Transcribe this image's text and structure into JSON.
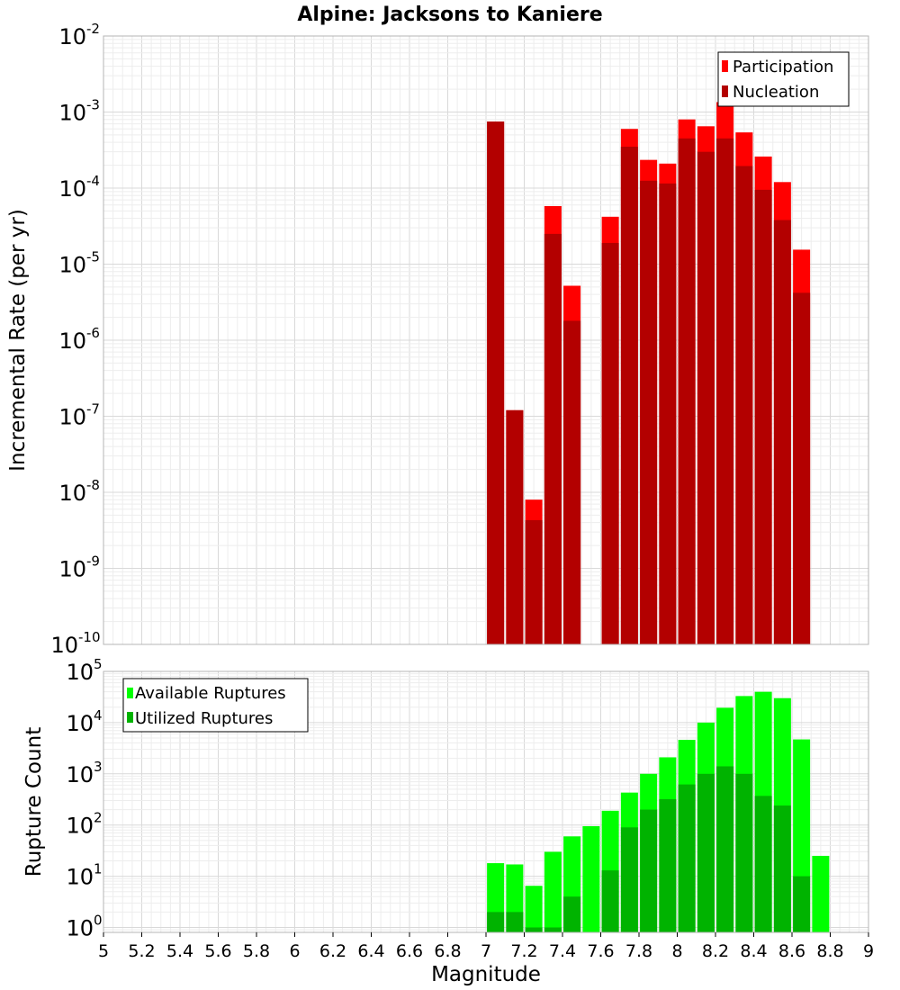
{
  "chart_data": [
    {
      "type": "bar",
      "title": "Alpine: Jacksons to Kaniere",
      "xlabel": "Magnitude",
      "ylabel": "Incremental Rate (per yr)",
      "yscale": "log",
      "ylim": [
        1e-10,
        0.01
      ],
      "xlim": [
        5,
        9
      ],
      "grid": true,
      "legend_position": "top-right",
      "y_tick_labels": [
        {
          "base": "10",
          "exp": "-10",
          "value": 1e-10
        },
        {
          "base": "10",
          "exp": "-9",
          "value": 1e-09
        },
        {
          "base": "10",
          "exp": "-8",
          "value": 1e-08
        },
        {
          "base": "10",
          "exp": "-7",
          "value": 1e-07
        },
        {
          "base": "10",
          "exp": "-6",
          "value": 1e-06
        },
        {
          "base": "10",
          "exp": "-5",
          "value": 1e-05
        },
        {
          "base": "10",
          "exp": "-4",
          "value": 0.0001
        },
        {
          "base": "10",
          "exp": "-3",
          "value": 0.001
        },
        {
          "base": "10",
          "exp": "-2",
          "value": 0.01
        }
      ],
      "series": [
        {
          "name": "Participation",
          "color": "#ff0000",
          "points": [
            {
              "x": 7.05,
              "y": 0.00075
            },
            {
              "x": 7.15,
              "y": 1.2e-07
            },
            {
              "x": 7.25,
              "y": 8e-09
            },
            {
              "x": 7.35,
              "y": 5.8e-05
            },
            {
              "x": 7.45,
              "y": 5.2e-06
            },
            {
              "x": 7.65,
              "y": 4.2e-05
            },
            {
              "x": 7.75,
              "y": 0.0006
            },
            {
              "x": 7.85,
              "y": 0.000235
            },
            {
              "x": 7.95,
              "y": 0.00021
            },
            {
              "x": 8.05,
              "y": 0.0008
            },
            {
              "x": 8.15,
              "y": 0.00065
            },
            {
              "x": 8.25,
              "y": 0.00135
            },
            {
              "x": 8.35,
              "y": 0.00054
            },
            {
              "x": 8.45,
              "y": 0.00026
            },
            {
              "x": 8.55,
              "y": 0.00012
            },
            {
              "x": 8.65,
              "y": 1.55e-05
            }
          ]
        },
        {
          "name": "Nucleation",
          "color": "#b30000",
          "points": [
            {
              "x": 7.05,
              "y": 0.00075
            },
            {
              "x": 7.15,
              "y": 1.2e-07
            },
            {
              "x": 7.25,
              "y": 4.3e-09
            },
            {
              "x": 7.35,
              "y": 2.5e-05
            },
            {
              "x": 7.45,
              "y": 1.8e-06
            },
            {
              "x": 7.65,
              "y": 1.9e-05
            },
            {
              "x": 7.75,
              "y": 0.00035
            },
            {
              "x": 7.85,
              "y": 0.000125
            },
            {
              "x": 7.95,
              "y": 0.000115
            },
            {
              "x": 8.05,
              "y": 0.00045
            },
            {
              "x": 8.15,
              "y": 0.0003
            },
            {
              "x": 8.25,
              "y": 0.00045
            },
            {
              "x": 8.35,
              "y": 0.000195
            },
            {
              "x": 8.45,
              "y": 9.5e-05
            },
            {
              "x": 8.55,
              "y": 3.8e-05
            },
            {
              "x": 8.65,
              "y": 4.2e-06
            }
          ]
        }
      ]
    },
    {
      "type": "bar",
      "xlabel": "Magnitude",
      "ylabel": "Rupture Count",
      "yscale": "log",
      "ylim": [
        0.8,
        100000.0
      ],
      "xlim": [
        5,
        9
      ],
      "grid": true,
      "legend_position": "top-left",
      "x_ticks": [
        "5",
        "5.2",
        "5.4",
        "5.6",
        "5.8",
        "6",
        "6.2",
        "6.4",
        "6.6",
        "6.8",
        "7",
        "7.2",
        "7.4",
        "7.6",
        "7.8",
        "8",
        "8.2",
        "8.4",
        "8.6",
        "8.8",
        "9"
      ],
      "y_tick_labels": [
        {
          "base": "10",
          "exp": "0",
          "value": 1
        },
        {
          "base": "10",
          "exp": "1",
          "value": 10
        },
        {
          "base": "10",
          "exp": "2",
          "value": 100
        },
        {
          "base": "10",
          "exp": "3",
          "value": 1000
        },
        {
          "base": "10",
          "exp": "4",
          "value": 10000
        },
        {
          "base": "10",
          "exp": "5",
          "value": 100000
        }
      ],
      "series": [
        {
          "name": "Available Ruptures",
          "color": "#00ff00",
          "points": [
            {
              "x": 7.05,
              "y": 18
            },
            {
              "x": 7.15,
              "y": 17
            },
            {
              "x": 7.25,
              "y": 6.5
            },
            {
              "x": 7.35,
              "y": 30
            },
            {
              "x": 7.45,
              "y": 60
            },
            {
              "x": 7.55,
              "y": 95
            },
            {
              "x": 7.65,
              "y": 190
            },
            {
              "x": 7.75,
              "y": 430
            },
            {
              "x": 7.85,
              "y": 1000
            },
            {
              "x": 7.95,
              "y": 2100
            },
            {
              "x": 8.05,
              "y": 4600
            },
            {
              "x": 8.15,
              "y": 10000
            },
            {
              "x": 8.25,
              "y": 19500
            },
            {
              "x": 8.35,
              "y": 33000
            },
            {
              "x": 8.45,
              "y": 40000
            },
            {
              "x": 8.55,
              "y": 30000
            },
            {
              "x": 8.65,
              "y": 4700
            },
            {
              "x": 8.75,
              "y": 25
            }
          ]
        },
        {
          "name": "Utilized Ruptures",
          "color": "#00b300",
          "points": [
            {
              "x": 7.05,
              "y": 2
            },
            {
              "x": 7.15,
              "y": 2
            },
            {
              "x": 7.25,
              "y": 1
            },
            {
              "x": 7.35,
              "y": 1
            },
            {
              "x": 7.45,
              "y": 4
            },
            {
              "x": 7.55,
              "y": 0
            },
            {
              "x": 7.65,
              "y": 13
            },
            {
              "x": 7.75,
              "y": 90
            },
            {
              "x": 7.85,
              "y": 200
            },
            {
              "x": 7.95,
              "y": 320
            },
            {
              "x": 8.05,
              "y": 620
            },
            {
              "x": 8.15,
              "y": 1000
            },
            {
              "x": 8.25,
              "y": 1400
            },
            {
              "x": 8.35,
              "y": 1000
            },
            {
              "x": 8.45,
              "y": 370
            },
            {
              "x": 8.55,
              "y": 240
            },
            {
              "x": 8.65,
              "y": 10
            },
            {
              "x": 8.75,
              "y": 0
            }
          ]
        }
      ]
    }
  ]
}
